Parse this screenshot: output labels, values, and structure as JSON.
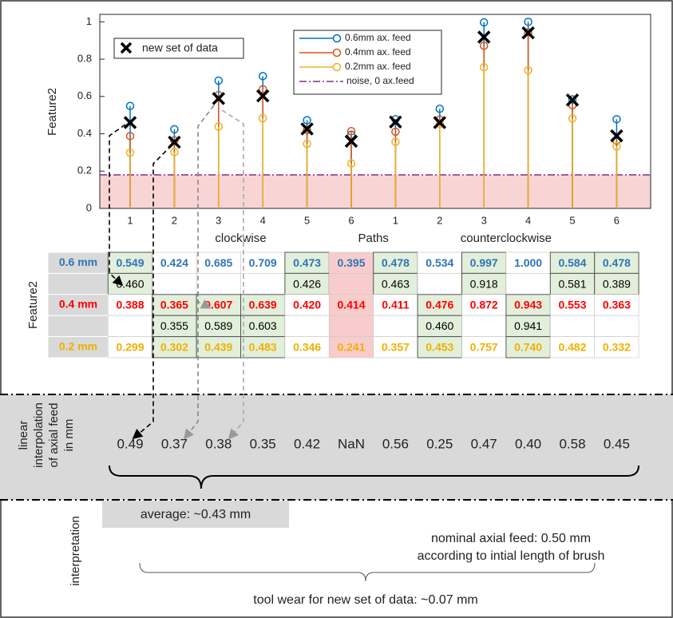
{
  "chart_data": {
    "type": "stem",
    "y_label": "Feature2",
    "categories": [
      1,
      2,
      3,
      4,
      5,
      6,
      1,
      2,
      3,
      4,
      5,
      6
    ],
    "group_labels": [
      "clockwise",
      "Paths",
      "counterclockwise"
    ],
    "ylim": [
      0,
      1.04
    ],
    "yticks": [
      0,
      0.2,
      0.4,
      0.6,
      0.8,
      1
    ],
    "series": [
      {
        "name": "0.6mm ax. feed",
        "color": "#0072bd",
        "values": [
          0.549,
          0.424,
          0.685,
          0.709,
          0.473,
          0.395,
          0.478,
          0.534,
          0.997,
          1.0,
          0.584,
          0.478
        ]
      },
      {
        "name": "0.4mm ax. feed",
        "color": "#d95319",
        "values": [
          0.388,
          0.365,
          0.607,
          0.639,
          0.42,
          0.414,
          0.411,
          0.476,
          0.872,
          0.943,
          0.553,
          0.363
        ]
      },
      {
        "name": "0.2mm ax. feed",
        "color": "#edb120",
        "values": [
          0.299,
          0.302,
          0.439,
          0.483,
          0.346,
          0.241,
          0.357,
          0.453,
          0.757,
          0.74,
          0.482,
          0.332
        ]
      }
    ],
    "noise": {
      "name": "noise, 0 ax.feed",
      "color": "#7e2f8e",
      "value": 0.18
    },
    "new_data": {
      "name": "new set of data",
      "color": "#000000",
      "values": [
        0.46,
        0.355,
        0.589,
        0.603,
        0.426,
        0.36,
        0.463,
        0.46,
        0.918,
        0.941,
        0.581,
        0.389
      ]
    }
  },
  "table": {
    "y_label": "Feature2",
    "rows": [
      {
        "label": "0.6 mm",
        "color": "#2e75b6",
        "cells": [
          "0.549",
          "0.424",
          "0.685",
          "0.709",
          "0.473",
          "0.395",
          "0.478",
          "0.534",
          "0.997",
          "1.000",
          "0.584",
          "0.478"
        ]
      },
      {
        "label": null,
        "color": "#000000",
        "cells": [
          "0.460",
          null,
          null,
          null,
          "0.426",
          null,
          "0.463",
          null,
          "0.918",
          null,
          "0.581",
          "0.389"
        ]
      },
      {
        "label": "0.4 mm",
        "color": "#ff0000",
        "cells": [
          "0.388",
          "0.365",
          "0.607",
          "0.639",
          "0.420",
          "0.414",
          "0.411",
          "0.476",
          "0.872",
          "0.943",
          "0.553",
          "0.363"
        ]
      },
      {
        "label": null,
        "color": "#000000",
        "cells": [
          null,
          "0.355",
          "0.589",
          "0.603",
          null,
          null,
          null,
          "0.460",
          null,
          "0.941",
          null,
          null
        ]
      },
      {
        "label": "0.2 mm",
        "color": "#f0b000",
        "cells": [
          "0.299",
          "0.302",
          "0.439",
          "0.483",
          "0.346",
          "0.241",
          "0.357",
          "0.453",
          "0.757",
          "0.740",
          "0.482",
          "0.332"
        ]
      }
    ]
  },
  "interpolation": {
    "label_lines": [
      "linear",
      "interpolation",
      "of axial feed",
      "in mm"
    ],
    "values": [
      "0.49",
      "0.37",
      "0.38",
      "0.35",
      "0.42",
      "NaN",
      "0.56",
      "0.25",
      "0.47",
      "0.40",
      "0.58",
      "0.45"
    ]
  },
  "interpretation": {
    "label": "interpretation",
    "average": "average: ~0.43 mm",
    "nominal": [
      "nominal axial feed: 0.50 mm",
      "according to intial length of brush"
    ],
    "tool_wear": "tool wear for new set of data: ~0.07 mm"
  }
}
